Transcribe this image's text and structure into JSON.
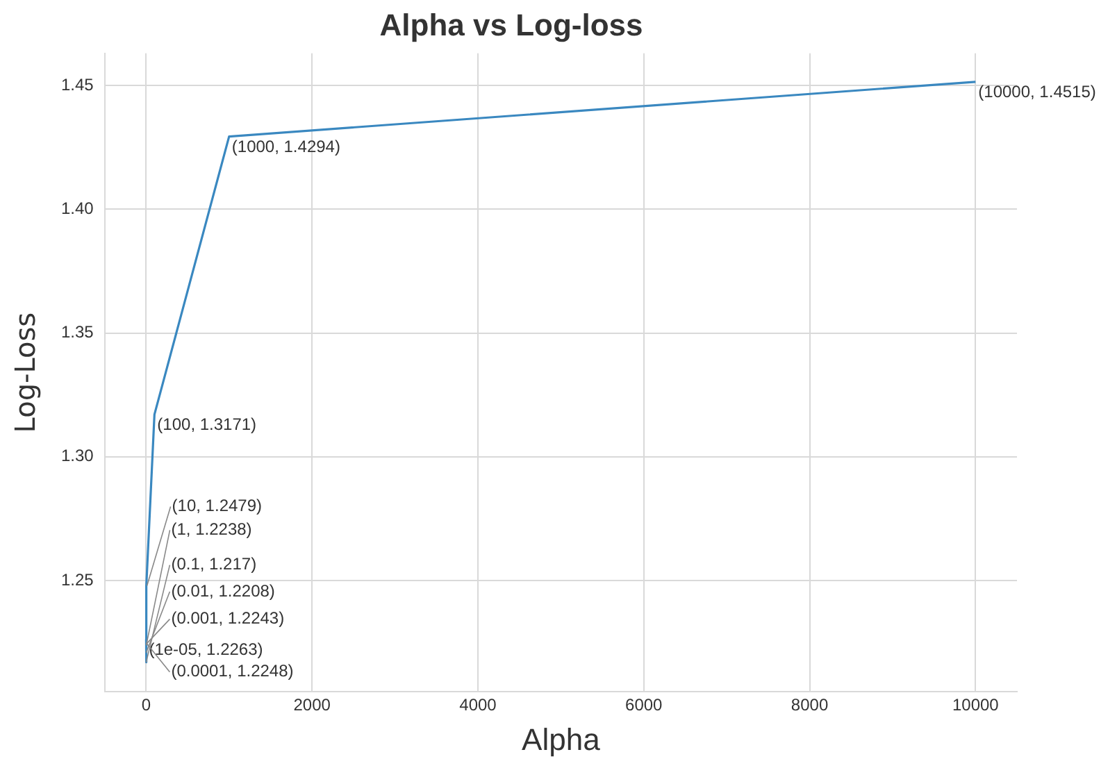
{
  "chart_data": {
    "type": "line",
    "title": "Alpha vs Log-loss",
    "xlabel": "Alpha",
    "ylabel": "Log-Loss",
    "x": [
      1e-05,
      0.0001,
      0.001,
      0.01,
      0.1,
      1,
      10,
      100,
      1000,
      10000
    ],
    "series": [
      {
        "color": "#3a88c0",
        "values": [
          1.2263,
          1.2248,
          1.2243,
          1.2208,
          1.217,
          1.2238,
          1.2479,
          1.3171,
          1.4294,
          1.4515
        ]
      }
    ],
    "xlim": [
      -500,
      10500
    ],
    "xticks": [
      0,
      2000,
      4000,
      6000,
      8000,
      10000
    ],
    "ylim": [
      1.205,
      1.463
    ],
    "yticks": [
      {
        "value": 1.25,
        "label": "1.25"
      },
      {
        "value": 1.3,
        "label": "1.30"
      },
      {
        "value": 1.35,
        "label": "1.35"
      },
      {
        "value": 1.4,
        "label": "1.40"
      },
      {
        "value": 1.45,
        "label": "1.45"
      }
    ],
    "grid": true,
    "legend": false,
    "marker": "none",
    "line_style": "solid",
    "annotations": [
      {
        "text": "(1e-05, 1.2263)",
        "x": 1e-05,
        "y": 1.2263
      },
      {
        "text": "(0.0001, 1.2248)",
        "x": 0.0001,
        "y": 1.2248
      },
      {
        "text": "(0.001, 1.2243)",
        "x": 0.001,
        "y": 1.2243
      },
      {
        "text": "(0.01, 1.2208)",
        "x": 0.01,
        "y": 1.2208
      },
      {
        "text": "(0.1, 1.217)",
        "x": 0.1,
        "y": 1.217
      },
      {
        "text": "(1, 1.2238)",
        "x": 1,
        "y": 1.2238
      },
      {
        "text": "(10, 1.2479)",
        "x": 10,
        "y": 1.2479
      },
      {
        "text": "(100, 1.3171)",
        "x": 100,
        "y": 1.3171
      },
      {
        "text": "(1000, 1.4294)",
        "x": 1000,
        "y": 1.4294
      },
      {
        "text": "(10000, 1.4515)",
        "x": 10000,
        "y": 1.4515
      }
    ]
  }
}
